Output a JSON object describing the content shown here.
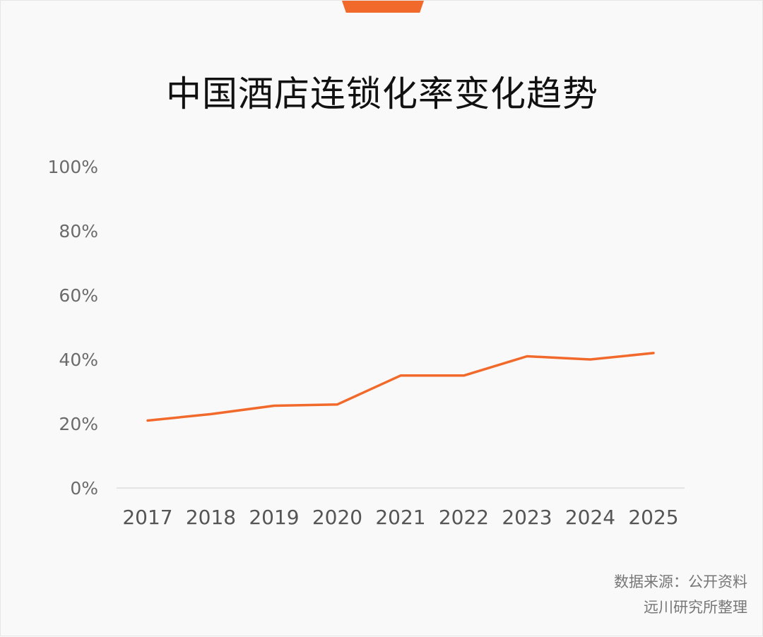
{
  "chart_data": {
    "type": "line",
    "title": "中国酒店连锁化率变化趋势",
    "categories": [
      "2017",
      "2018",
      "2019",
      "2020",
      "2021",
      "2022",
      "2023",
      "2024",
      "2025"
    ],
    "series": [
      {
        "values": [
          21,
          23,
          25.6,
          26,
          35,
          35,
          41,
          40,
          42
        ]
      }
    ],
    "ylim": [
      0,
      100
    ],
    "yticks": [
      "0%",
      "20%",
      "40%",
      "60%",
      "80%",
      "100%"
    ],
    "grid": false,
    "legend": "none"
  },
  "source": {
    "line1": "数据来源：公开资料",
    "line2": "远川研究所整理"
  },
  "colors": {
    "accent": "#f26a2b",
    "background": "#f9f9f9",
    "axis": "#dddddd"
  }
}
